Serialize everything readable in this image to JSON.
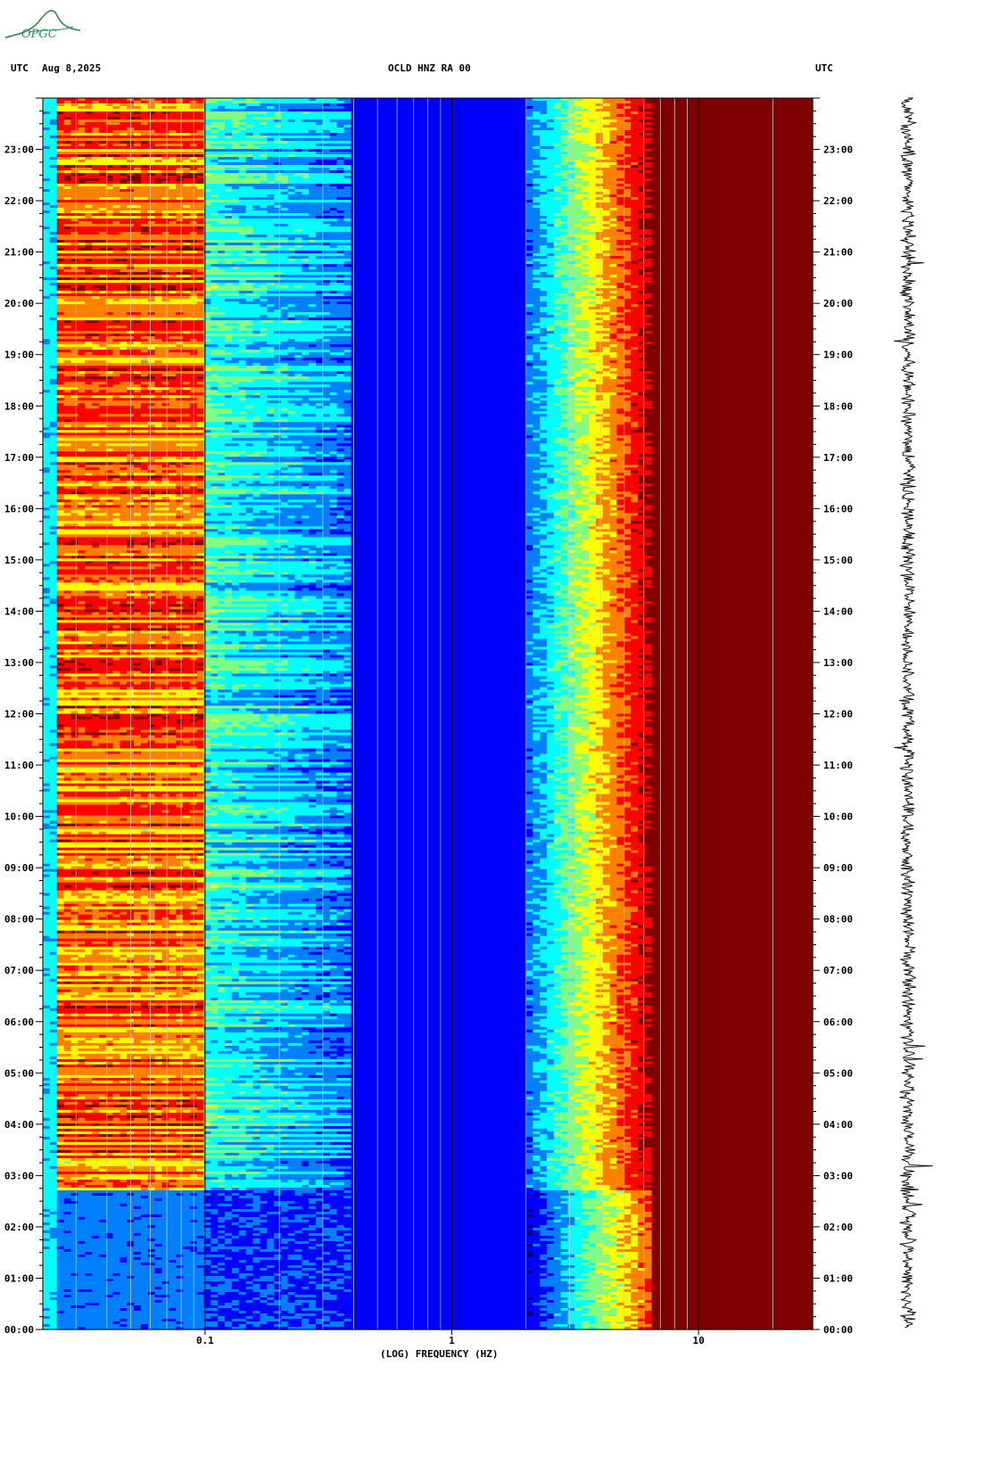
{
  "header": {
    "left_utc": "UTC",
    "date": "Aug 8,2025",
    "station": "OCLD HNZ RA 00",
    "right_utc": "UTC"
  },
  "logo": {
    "text": "OPGC",
    "color": "#2e8b57"
  },
  "chart_data": {
    "type": "heatmap",
    "title": "OCLD HNZ RA 00",
    "xlabel": "(LOG) FREQUENCY (HZ)",
    "ylabel": "UTC",
    "x_scale": "log",
    "xlim": [
      0.022,
      29
    ],
    "x_ticks": [
      0.1,
      1,
      10
    ],
    "x_tick_labels": [
      "0.1",
      "1",
      "10"
    ],
    "ylim_hours": [
      0,
      24
    ],
    "y_ticks": [
      "00:00",
      "01:00",
      "02:00",
      "03:00",
      "04:00",
      "05:00",
      "06:00",
      "07:00",
      "08:00",
      "09:00",
      "10:00",
      "11:00",
      "12:00",
      "13:00",
      "14:00",
      "15:00",
      "16:00",
      "17:00",
      "18:00",
      "19:00",
      "20:00",
      "21:00",
      "22:00",
      "23:00"
    ],
    "colormap": [
      "#00007f",
      "#0000ff",
      "#0080ff",
      "#00ffff",
      "#80ff80",
      "#ffff00",
      "#ff8000",
      "#ff0000",
      "#7f0000"
    ],
    "noise_band_hours": [
      2.7,
      24
    ]
  }
}
